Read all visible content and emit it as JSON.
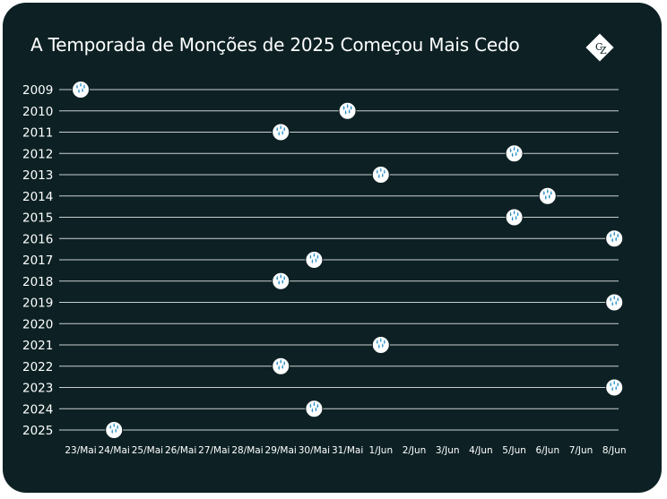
{
  "title": "A Temporada de Monções de 2025 Começou Mais Cedo",
  "icons": {
    "logo": "cz-diamond-logo",
    "marker": "rain-drop-icon"
  },
  "colors": {
    "background": "#0d2124",
    "text": "#ffffff",
    "grid": "#c9cfd0",
    "marker_fill": "#ffffff",
    "marker_drops": "#2a8fc4"
  },
  "chart_data": {
    "type": "scatter",
    "title": "A Temporada de Monções de 2025 Começou Mais Cedo",
    "xlabel": "",
    "ylabel": "",
    "grid": true,
    "x_categories": [
      "23/Mai",
      "24/Mai",
      "25/Mai",
      "26/Mai",
      "27/Mai",
      "28/Mai",
      "29/Mai",
      "30/Mai",
      "31/Mai",
      "1/Jun",
      "2/Jun",
      "3/Jun",
      "4/Jun",
      "5/Jun",
      "6/Jun",
      "7/Jun",
      "8/Jun"
    ],
    "y_categories": [
      "2009",
      "2010",
      "2011",
      "2012",
      "2013",
      "2014",
      "2015",
      "2016",
      "2017",
      "2018",
      "2019",
      "2020",
      "2021",
      "2022",
      "2023",
      "2024",
      "2025"
    ],
    "points": [
      {
        "year": "2009",
        "date": "23/Mai"
      },
      {
        "year": "2010",
        "date": "31/Mai"
      },
      {
        "year": "2011",
        "date": "29/Mai"
      },
      {
        "year": "2012",
        "date": "5/Jun"
      },
      {
        "year": "2013",
        "date": "1/Jun"
      },
      {
        "year": "2014",
        "date": "6/Jun"
      },
      {
        "year": "2015",
        "date": "5/Jun"
      },
      {
        "year": "2016",
        "date": "8/Jun"
      },
      {
        "year": "2017",
        "date": "30/Mai"
      },
      {
        "year": "2018",
        "date": "29/Mai"
      },
      {
        "year": "2019",
        "date": "8/Jun"
      },
      {
        "year": "2021",
        "date": "1/Jun"
      },
      {
        "year": "2022",
        "date": "29/Mai"
      },
      {
        "year": "2023",
        "date": "8/Jun"
      },
      {
        "year": "2024",
        "date": "30/Mai"
      },
      {
        "year": "2025",
        "date": "24/Mai"
      }
    ]
  }
}
